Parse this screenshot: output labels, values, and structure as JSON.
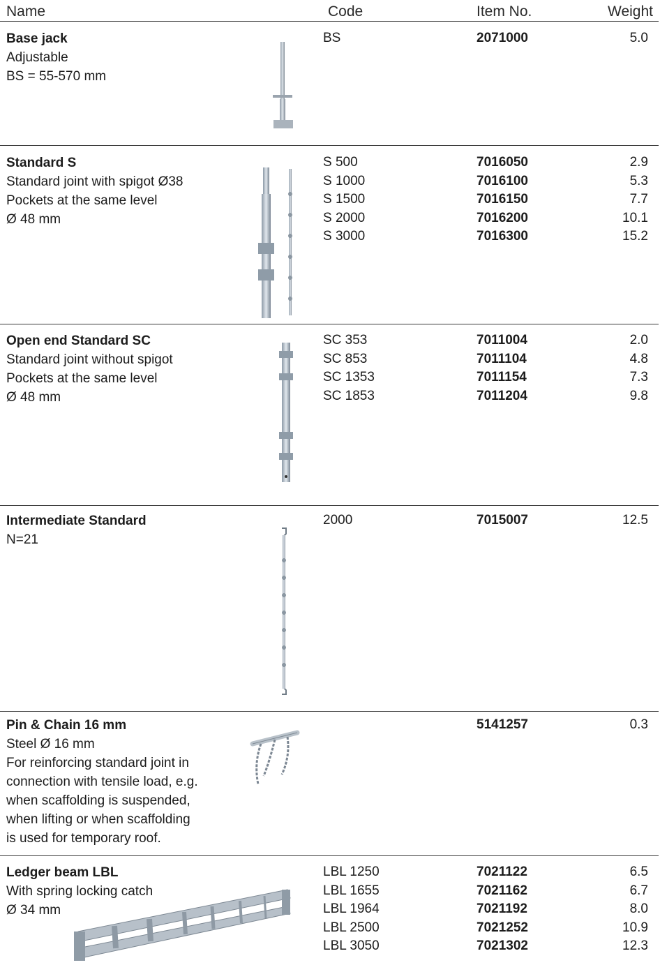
{
  "header": {
    "name": "Name",
    "code": "Code",
    "item_no": "Item No.",
    "weight": "Weight"
  },
  "products": [
    {
      "title": "Base jack",
      "desc": [
        "Adjustable",
        "BS = 55-570 mm"
      ],
      "codes": [
        "BS"
      ],
      "items": [
        "2071000"
      ],
      "weights": [
        "5.0"
      ],
      "image": "base-jack-image"
    },
    {
      "title": "Standard S",
      "desc": [
        "Standard joint with spigot  Ø38",
        "Pockets at the same level",
        "Ø  48 mm"
      ],
      "codes": [
        "S 500",
        "S 1000",
        "S 1500",
        "S 2000",
        "S 3000"
      ],
      "items": [
        "7016050",
        "7016100",
        "7016150",
        "7016200",
        "7016300"
      ],
      "weights": [
        "2.9",
        "5.3",
        "7.7",
        "10.1",
        "15.2"
      ],
      "image": "standard-s-image"
    },
    {
      "title": "Open end Standard SC",
      "desc": [
        "Standard joint without spigot",
        "Pockets at the same level",
        "Ø  48 mm"
      ],
      "codes": [
        "SC 353",
        "SC 853",
        "SC 1353",
        "SC 1853"
      ],
      "items": [
        "7011004",
        "7011104",
        "7011154",
        "7011204"
      ],
      "weights": [
        "2.0",
        "4.8",
        "7.3",
        "9.8"
      ],
      "image": "open-end-standard-image"
    },
    {
      "title": "Intermediate Standard",
      "desc": [
        "N=21"
      ],
      "codes": [
        "2000"
      ],
      "items": [
        "7015007"
      ],
      "weights": [
        "12.5"
      ],
      "image": "intermediate-standard-image"
    },
    {
      "title": "Pin & Chain 16 mm",
      "desc": [
        "Steel Ø 16 mm",
        "For reinforcing standard joint in",
        "connection with tensile load, e.g.",
        "when scaffolding is suspended,",
        "when lifting or when scaffolding",
        "is used for temporary roof."
      ],
      "codes": [],
      "items": [
        "5141257"
      ],
      "weights": [
        "0.3"
      ],
      "image": "pin-chain-image"
    },
    {
      "title": "Ledger beam LBL",
      "desc": [
        "With spring locking catch",
        "Ø  34 mm"
      ],
      "codes": [
        "LBL 1250",
        "LBL 1655",
        "LBL 1964",
        "LBL 2500",
        "LBL 3050"
      ],
      "items": [
        "7021122",
        "7021162",
        "7021192",
        "7021252",
        "7021302"
      ],
      "weights": [
        "6.5",
        "6.7",
        "8.0",
        "10.9",
        "12.3"
      ],
      "image": "ledger-beam-image"
    }
  ]
}
